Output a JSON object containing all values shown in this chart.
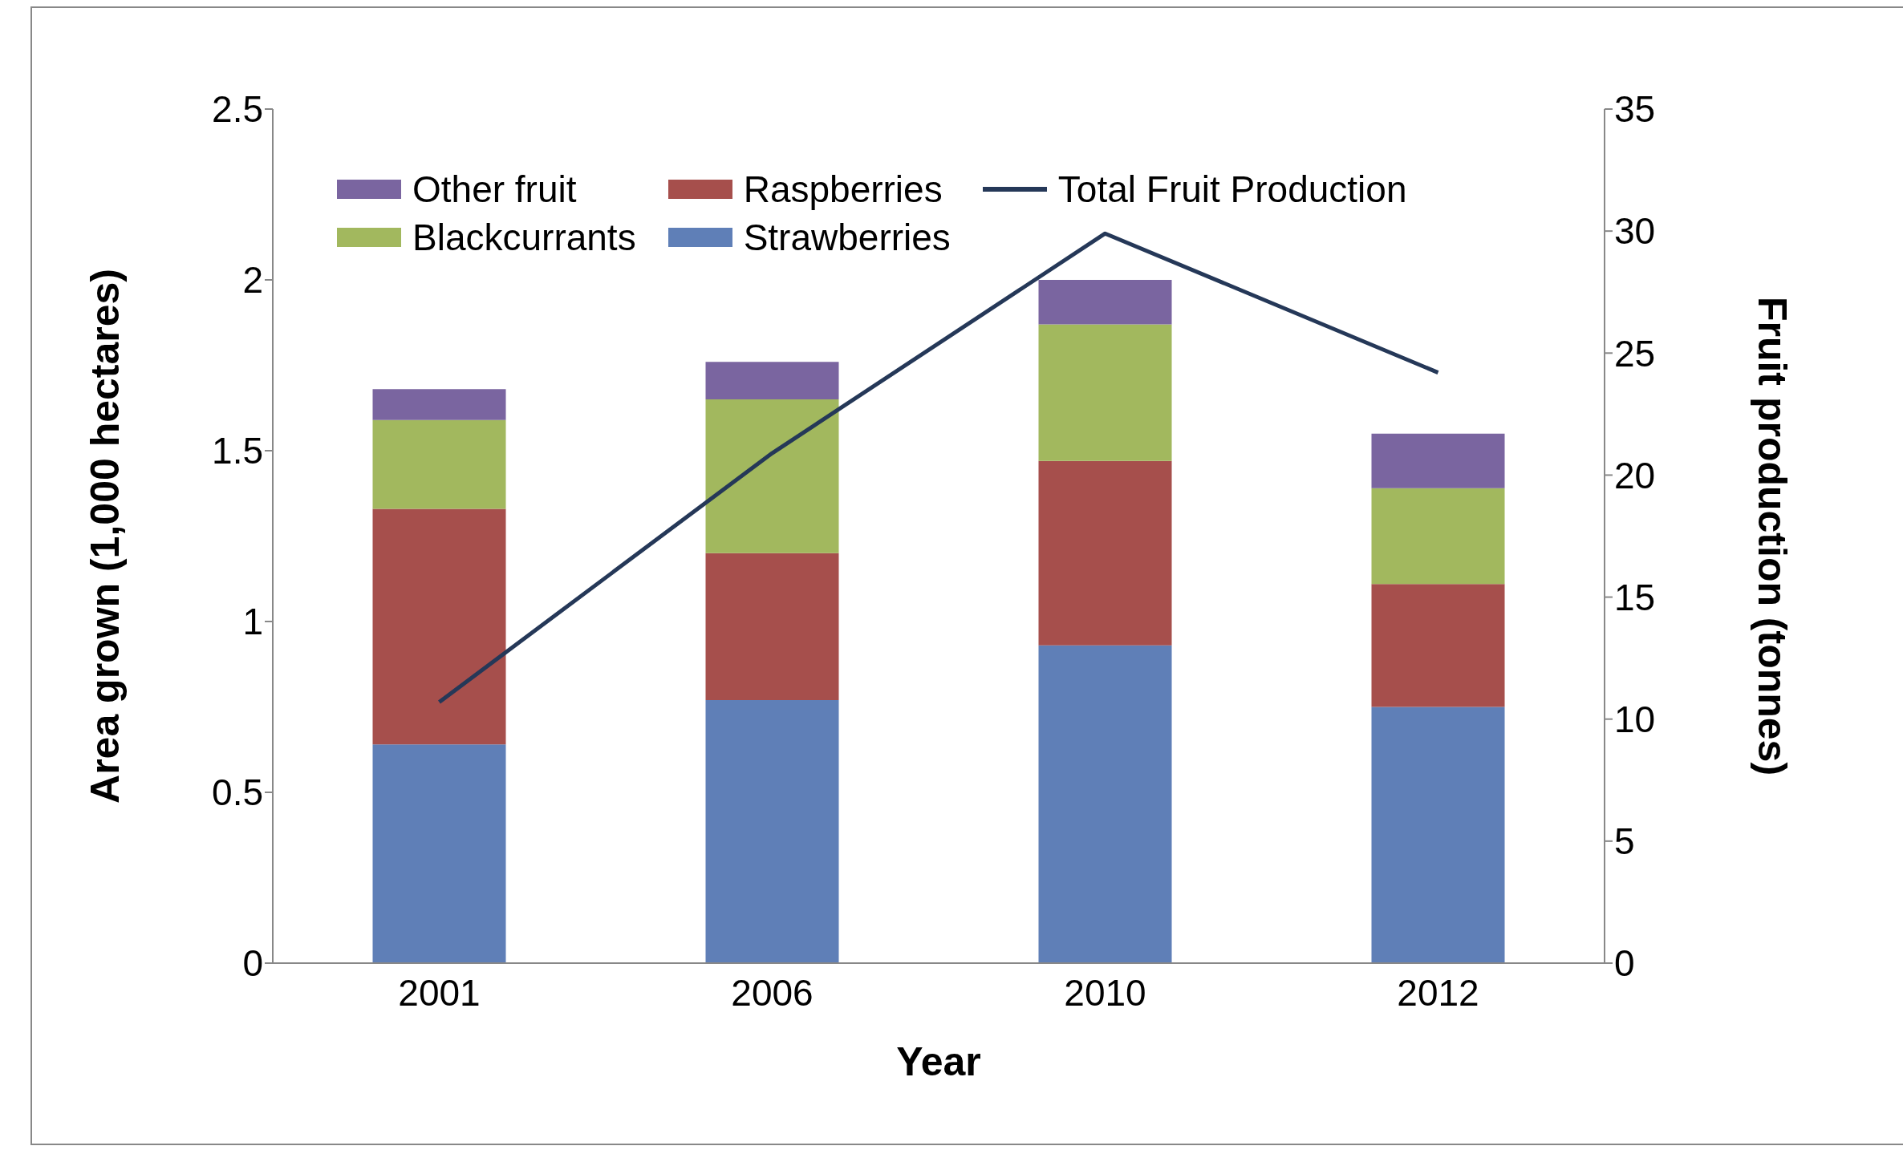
{
  "chart_data": {
    "type": "bar",
    "stacked": true,
    "xlabel": "Year",
    "ylabel": "Area grown (1,000 hectares)",
    "y2label": "Fruit production (tonnes)",
    "categories": [
      "2001",
      "2006",
      "2010",
      "2012"
    ],
    "series": [
      {
        "name": "Strawberries",
        "color": "#5f7fb7",
        "values": [
          0.64,
          0.77,
          0.93,
          0.75
        ]
      },
      {
        "name": "Raspberries",
        "color": "#a64f4c",
        "values": [
          0.69,
          0.43,
          0.54,
          0.36
        ]
      },
      {
        "name": "Blackcurrants",
        "color": "#a2b85e",
        "values": [
          0.26,
          0.45,
          0.4,
          0.28
        ]
      },
      {
        "name": "Other fruit",
        "color": "#7a65a0",
        "values": [
          0.09,
          0.11,
          0.13,
          0.16
        ]
      },
      {
        "name": "Total Fruit Production",
        "type": "line",
        "axis": "y2",
        "color": "#253858",
        "values": [
          10.7,
          20.9,
          29.9,
          24.2
        ]
      }
    ],
    "ylim": [
      0,
      2.5
    ],
    "yticks": [
      0,
      0.5,
      1,
      1.5,
      2,
      2.5
    ],
    "y2lim": [
      0,
      35
    ],
    "y2ticks": [
      0,
      5,
      10,
      15,
      20,
      25,
      30,
      35
    ],
    "legend": "top",
    "marker": "none"
  }
}
